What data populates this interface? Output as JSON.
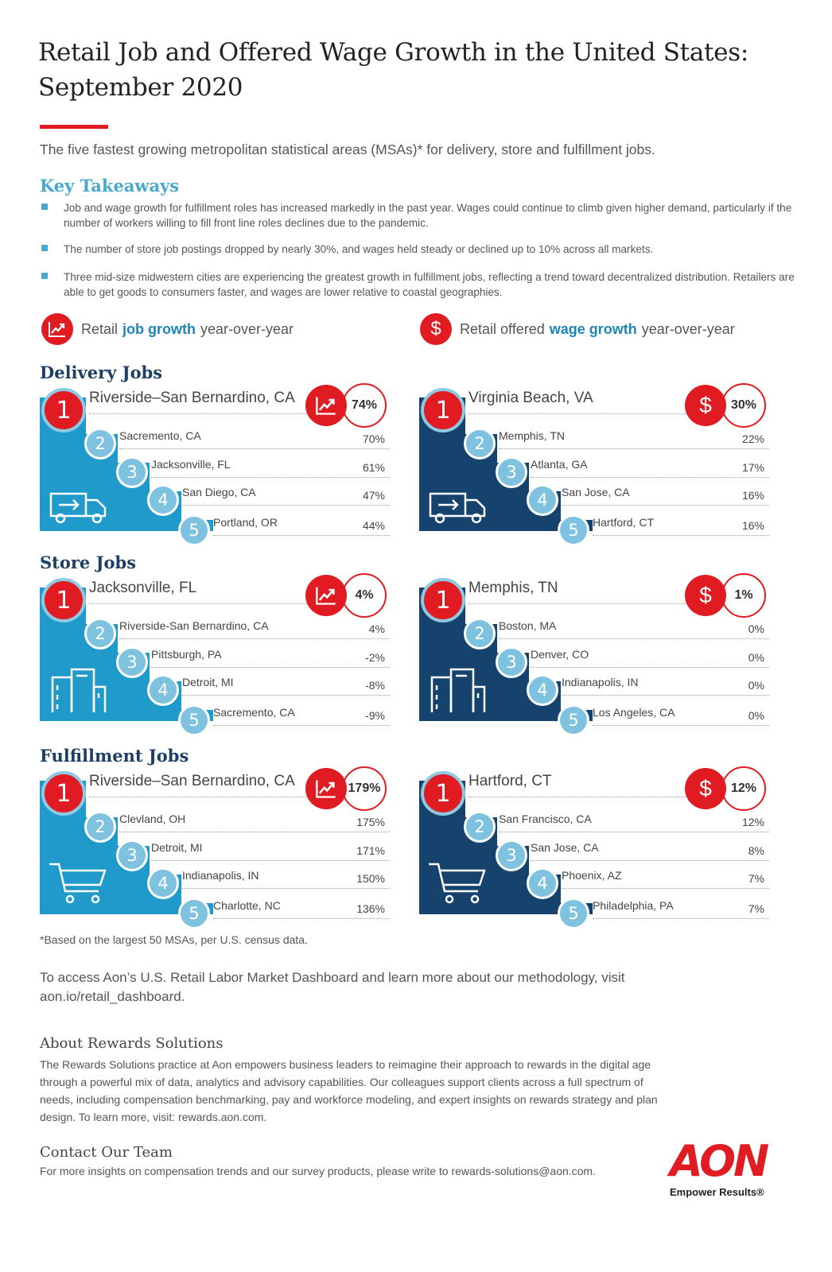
{
  "header": {
    "title_line1": "Retail Job and Offered Wage Growth in the United States:",
    "title_line2": "September 2020",
    "subtitle": "The five fastest growing metropolitan statistical areas (MSAs)* for delivery, store and fulfillment jobs."
  },
  "key_takeaways": {
    "title": "Key Takeaways",
    "items": [
      "Job and wage growth for fulfillment roles has increased markedly in the past year. Wages could continue to climb given higher demand, particularly if the number of workers willing to fill front line roles declines due to the pandemic.",
      "The number of store job postings dropped by nearly 30%, and wages held steady or declined up to 10% across all markets.",
      "Three mid-size midwestern cities are experiencing the greatest growth in fulfillment jobs, reflecting a trend toward decentralized distribution. Retailers are able to get goods to consumers faster, and wages are lower relative to coastal geographies."
    ]
  },
  "legend": {
    "job": {
      "pre": "Retail",
      "highlight": "job growth",
      "post": "year-over-year"
    },
    "wage": {
      "pre": "Retail offered",
      "highlight": "wage growth",
      "post": "year-over-year"
    },
    "wage_symbol": "$"
  },
  "sections": [
    {
      "title": "Delivery Jobs",
      "icon": "truck-icon",
      "job": {
        "rows": [
          {
            "rank": "1",
            "city": "Riverside–San Bernardino, CA",
            "value": "74%"
          },
          {
            "rank": "2",
            "city": "Sacremento, CA",
            "value": "70%"
          },
          {
            "rank": "3",
            "city": "Jacksonville, FL",
            "value": "61%"
          },
          {
            "rank": "4",
            "city": "San Diego, CA",
            "value": "47%"
          },
          {
            "rank": "5",
            "city": "Portland, OR",
            "value": "44%"
          }
        ]
      },
      "wage": {
        "rows": [
          {
            "rank": "1",
            "city": "Virginia Beach, VA",
            "value": "30%"
          },
          {
            "rank": "2",
            "city": "Memphis, TN",
            "value": "22%"
          },
          {
            "rank": "3",
            "city": "Atlanta, GA",
            "value": "17%"
          },
          {
            "rank": "4",
            "city": "San Jose, CA",
            "value": "16%"
          },
          {
            "rank": "5",
            "city": "Hartford, CT",
            "value": "16%"
          }
        ]
      }
    },
    {
      "title": "Store Jobs",
      "icon": "store-building-icon",
      "job": {
        "rows": [
          {
            "rank": "1",
            "city": "Jacksonville, FL",
            "value": "4%"
          },
          {
            "rank": "2",
            "city": "Riverside-San Bernardino, CA",
            "value": "4%"
          },
          {
            "rank": "3",
            "city": "Pittsburgh, PA",
            "value": "-2%"
          },
          {
            "rank": "4",
            "city": "Detroit, MI",
            "value": "-8%"
          },
          {
            "rank": "5",
            "city": "Sacremento, CA",
            "value": "-9%"
          }
        ]
      },
      "wage": {
        "rows": [
          {
            "rank": "1",
            "city": "Memphis, TN",
            "value": "1%"
          },
          {
            "rank": "2",
            "city": "Boston, MA",
            "value": "0%"
          },
          {
            "rank": "3",
            "city": "Denver, CO",
            "value": "0%"
          },
          {
            "rank": "4",
            "city": "Indianapolis, IN",
            "value": "0%"
          },
          {
            "rank": "5",
            "city": "Los Angeles, CA",
            "value": "0%"
          }
        ]
      }
    },
    {
      "title": "Fulfillment Jobs",
      "icon": "shopping-cart-icon",
      "job": {
        "rows": [
          {
            "rank": "1",
            "city": "Riverside–San Bernardino, CA",
            "value": "179%"
          },
          {
            "rank": "2",
            "city": "Clevland, OH",
            "value": "175%"
          },
          {
            "rank": "3",
            "city": "Detroit, MI",
            "value": "171%"
          },
          {
            "rank": "4",
            "city": "Indianapolis, IN",
            "value": "150%"
          },
          {
            "rank": "5",
            "city": "Charlotte, NC",
            "value": "136%"
          }
        ]
      },
      "wage": {
        "rows": [
          {
            "rank": "1",
            "city": "Hartford, CT",
            "value": "12%"
          },
          {
            "rank": "2",
            "city": "San Francisco, CA",
            "value": "12%"
          },
          {
            "rank": "3",
            "city": "San Jose, CA",
            "value": "8%"
          },
          {
            "rank": "4",
            "city": "Phoenix, AZ",
            "value": "7%"
          },
          {
            "rank": "5",
            "city": "Philadelphia, PA",
            "value": "7%"
          }
        ]
      }
    }
  ],
  "colors": {
    "red": "#e11b22",
    "job_step": "#1f9acb",
    "wage_step": "#16426e",
    "light_blue": "#7ec2df"
  },
  "footer": {
    "footnote": "*Based on the largest 50 MSAs, per U.S. census data.",
    "access": "To access Aon’s U.S. Retail Labor Market Dashboard and learn more about our methodology, visit aon.io/retail_dashboard.",
    "about_title": "About Rewards Solutions",
    "about_body": "The Rewards Solutions practice at Aon empowers business leaders to reimagine their approach to rewards in the digital age through a powerful mix of data, analytics and advisory capabilities. Our colleagues support clients across a full spectrum of needs, including compensation benchmarking, pay and workforce modeling, and expert insights on rewards strategy and plan design. To learn more, visit: rewards.aon.com.",
    "contact_title": "Contact Our Team",
    "contact_body": "For more insights on compensation trends and our survey products, please write to rewards-solutions@aon.com."
  },
  "logo": {
    "mark": "AON",
    "tagline": "Empower Results®"
  }
}
